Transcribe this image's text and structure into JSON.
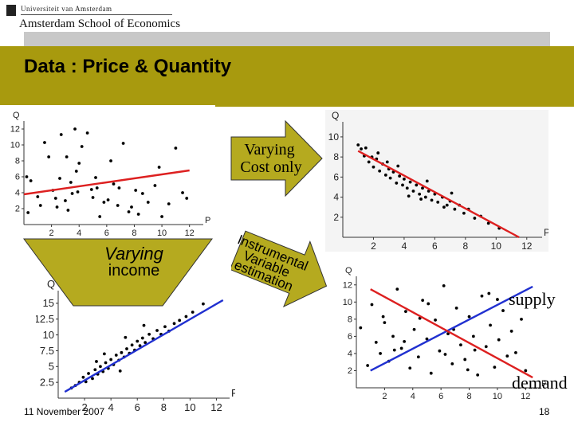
{
  "logo": {
    "small_text": "Universiteit van Amsterdam",
    "big_text": "Amsterdam School of Economics"
  },
  "slide": {
    "title": "Data : Price & Quantity",
    "date": "11 November 2007",
    "page": "18"
  },
  "arrows": {
    "varying_cost": [
      "Varying",
      "Cost only"
    ],
    "varying_income": [
      "Varying",
      "income"
    ],
    "iv": [
      "Instrumental",
      "Variable",
      "estimation"
    ]
  },
  "labels": {
    "supply": "supply",
    "demand": "demand"
  },
  "colors": {
    "band": "#a89a0e",
    "arrow": "#b5aa1f",
    "red": "#dd2020",
    "blue": "#2030d0"
  },
  "chart_data": [
    {
      "type": "scatter",
      "xlabel": "P",
      "ylabel": "Q",
      "xlim": [
        0,
        13
      ],
      "ylim": [
        0,
        13
      ],
      "xticks": [
        "2",
        "4",
        "6",
        "8",
        "10",
        "12"
      ],
      "yticks": [
        "2",
        "4",
        "6",
        "8",
        "10",
        "12"
      ],
      "fit_line": {
        "color": "#dd2020",
        "from": [
          0,
          3.8
        ],
        "to": [
          12,
          6.8
        ]
      },
      "points": [
        [
          0.2,
          6.0
        ],
        [
          0.3,
          1.5
        ],
        [
          0.5,
          5.5
        ],
        [
          1.0,
          3.5
        ],
        [
          1.5,
          10.3
        ],
        [
          1.8,
          8.5
        ],
        [
          2.1,
          4.3
        ],
        [
          2.3,
          3.3
        ],
        [
          2.6,
          5.8
        ],
        [
          2.7,
          11.3
        ],
        [
          3.0,
          3.0
        ],
        [
          3.1,
          8.5
        ],
        [
          3.2,
          1.8
        ],
        [
          3.5,
          3.9
        ],
        [
          3.7,
          12.0
        ],
        [
          3.8,
          6.7
        ],
        [
          4.2,
          9.8
        ],
        [
          4.6,
          11.5
        ],
        [
          5.0,
          3.4
        ],
        [
          5.2,
          5.9
        ],
        [
          5.5,
          1.0
        ],
        [
          5.8,
          2.8
        ],
        [
          6.3,
          8.0
        ],
        [
          6.5,
          5.1
        ],
        [
          6.9,
          4.6
        ],
        [
          7.2,
          10.2
        ],
        [
          7.6,
          1.6
        ],
        [
          8.1,
          4.3
        ],
        [
          8.6,
          3.9
        ],
        [
          9.0,
          2.8
        ],
        [
          9.5,
          4.9
        ],
        [
          10.0,
          1.0
        ],
        [
          10.5,
          2.6
        ],
        [
          11.0,
          9.6
        ],
        [
          11.5,
          4.0
        ],
        [
          11.8,
          3.3
        ],
        [
          4.9,
          4.4
        ],
        [
          5.3,
          4.6
        ],
        [
          2.4,
          2.2
        ],
        [
          6.1,
          3.1
        ],
        [
          8.3,
          1.3
        ],
        [
          3.4,
          5.3
        ],
        [
          1.2,
          2.4
        ],
        [
          9.8,
          7.2
        ],
        [
          7.8,
          2.2
        ],
        [
          4.0,
          7.7
        ],
        [
          6.8,
          2.4
        ],
        [
          3.9,
          4.1
        ]
      ]
    },
    {
      "type": "scatter",
      "xlabel": "P",
      "ylabel": "Q",
      "xlim": [
        0,
        13
      ],
      "ylim": [
        0,
        11.5
      ],
      "xticks": [
        "2",
        "4",
        "6",
        "8",
        "10",
        "12"
      ],
      "yticks": [
        "2",
        "4",
        "6",
        "8",
        "10"
      ],
      "fit_line": {
        "color": "#dd2020",
        "from": [
          1,
          8.6
        ],
        "to": [
          11.5,
          0
        ]
      },
      "points": [
        [
          1.0,
          9.2
        ],
        [
          1.2,
          8.8
        ],
        [
          1.4,
          8.1
        ],
        [
          1.5,
          8.9
        ],
        [
          1.7,
          7.5
        ],
        [
          1.9,
          8.0
        ],
        [
          2.0,
          7.0
        ],
        [
          2.2,
          7.8
        ],
        [
          2.4,
          6.6
        ],
        [
          2.6,
          7.3
        ],
        [
          2.8,
          6.2
        ],
        [
          3.0,
          6.8
        ],
        [
          3.1,
          5.9
        ],
        [
          3.3,
          6.5
        ],
        [
          3.5,
          5.4
        ],
        [
          3.7,
          6.1
        ],
        [
          3.9,
          5.2
        ],
        [
          4.0,
          5.8
        ],
        [
          4.2,
          4.9
        ],
        [
          4.4,
          5.5
        ],
        [
          4.6,
          4.6
        ],
        [
          4.8,
          5.2
        ],
        [
          5.0,
          4.3
        ],
        [
          5.2,
          4.9
        ],
        [
          5.4,
          4.0
        ],
        [
          5.6,
          4.6
        ],
        [
          5.8,
          3.7
        ],
        [
          6.0,
          4.3
        ],
        [
          6.2,
          3.5
        ],
        [
          6.5,
          4.0
        ],
        [
          6.8,
          3.2
        ],
        [
          7.0,
          3.6
        ],
        [
          7.3,
          2.8
        ],
        [
          7.6,
          3.2
        ],
        [
          7.9,
          2.4
        ],
        [
          8.2,
          2.8
        ],
        [
          8.6,
          1.9
        ],
        [
          9.0,
          2.1
        ],
        [
          9.5,
          1.4
        ],
        [
          10.2,
          0.9
        ],
        [
          2.3,
          8.4
        ],
        [
          3.6,
          7.1
        ],
        [
          5.5,
          5.6
        ],
        [
          6.6,
          3.0
        ],
        [
          4.3,
          4.1
        ],
        [
          2.9,
          7.5
        ],
        [
          5.1,
          3.8
        ],
        [
          7.1,
          4.4
        ]
      ]
    },
    {
      "type": "scatter",
      "xlabel": "P",
      "ylabel": "Q",
      "xlim": [
        0,
        13
      ],
      "ylim": [
        0,
        17
      ],
      "xticks": [
        "2",
        "4",
        "6",
        "8",
        "10",
        "12"
      ],
      "yticks": [
        "2.5",
        "5",
        "7.5",
        "10",
        "12.5",
        "15"
      ],
      "fit_line": {
        "color": "#2030d0",
        "from": [
          0.5,
          1.0
        ],
        "to": [
          12.5,
          15.5
        ]
      },
      "points": [
        [
          1.0,
          1.6
        ],
        [
          1.3,
          2.0
        ],
        [
          1.6,
          2.5
        ],
        [
          1.9,
          3.3
        ],
        [
          2.1,
          2.6
        ],
        [
          2.3,
          3.9
        ],
        [
          2.6,
          3.1
        ],
        [
          2.8,
          4.5
        ],
        [
          3.0,
          3.8
        ],
        [
          3.2,
          5.0
        ],
        [
          3.4,
          4.2
        ],
        [
          3.6,
          5.6
        ],
        [
          3.8,
          4.7
        ],
        [
          4.0,
          6.1
        ],
        [
          4.2,
          5.3
        ],
        [
          4.4,
          6.8
        ],
        [
          4.6,
          6.0
        ],
        [
          4.8,
          7.2
        ],
        [
          5.0,
          6.5
        ],
        [
          5.2,
          7.8
        ],
        [
          5.4,
          7.1
        ],
        [
          5.6,
          8.4
        ],
        [
          5.8,
          7.6
        ],
        [
          6.0,
          9.0
        ],
        [
          6.2,
          8.3
        ],
        [
          6.4,
          9.5
        ],
        [
          6.6,
          8.8
        ],
        [
          6.9,
          10.1
        ],
        [
          7.2,
          9.4
        ],
        [
          7.5,
          10.7
        ],
        [
          7.8,
          10.1
        ],
        [
          8.1,
          11.3
        ],
        [
          8.4,
          10.6
        ],
        [
          8.8,
          11.8
        ],
        [
          9.2,
          12.3
        ],
        [
          9.7,
          12.9
        ],
        [
          10.2,
          13.6
        ],
        [
          11.0,
          14.9
        ],
        [
          3.5,
          7.0
        ],
        [
          5.1,
          9.6
        ],
        [
          6.5,
          11.5
        ],
        [
          4.7,
          4.3
        ],
        [
          2.9,
          5.8
        ]
      ]
    },
    {
      "type": "scatter",
      "xlabel": "P",
      "ylabel": "Q",
      "xlim": [
        0,
        13
      ],
      "ylim": [
        0,
        13
      ],
      "xticks": [
        "2",
        "4",
        "6",
        "8",
        "10",
        "12"
      ],
      "yticks": [
        "2",
        "4",
        "6",
        "8",
        "10",
        "12"
      ],
      "lines": [
        {
          "name": "supply",
          "color": "#2030d0",
          "from": [
            1,
            2
          ],
          "to": [
            12.5,
            11.8
          ]
        },
        {
          "name": "demand",
          "color": "#dd2020",
          "from": [
            1,
            11.5
          ],
          "to": [
            12.5,
            1.2
          ]
        }
      ],
      "points": [
        [
          0.3,
          7.0
        ],
        [
          0.8,
          2.6
        ],
        [
          1.1,
          9.7
        ],
        [
          1.4,
          5.3
        ],
        [
          1.7,
          4.0
        ],
        [
          2.0,
          7.6
        ],
        [
          2.3,
          3.1
        ],
        [
          2.6,
          6.0
        ],
        [
          2.9,
          11.5
        ],
        [
          3.2,
          4.6
        ],
        [
          3.5,
          8.9
        ],
        [
          3.8,
          2.3
        ],
        [
          4.1,
          6.8
        ],
        [
          4.4,
          3.6
        ],
        [
          4.7,
          10.2
        ],
        [
          5.0,
          5.7
        ],
        [
          5.3,
          1.7
        ],
        [
          5.6,
          7.9
        ],
        [
          5.9,
          4.3
        ],
        [
          6.2,
          11.9
        ],
        [
          6.5,
          6.3
        ],
        [
          6.8,
          2.8
        ],
        [
          7.1,
          9.3
        ],
        [
          7.4,
          5.0
        ],
        [
          7.7,
          3.3
        ],
        [
          8.0,
          8.3
        ],
        [
          8.3,
          6.0
        ],
        [
          8.6,
          1.5
        ],
        [
          8.9,
          10.7
        ],
        [
          9.2,
          4.8
        ],
        [
          9.5,
          7.3
        ],
        [
          9.8,
          2.4
        ],
        [
          10.1,
          5.6
        ],
        [
          10.4,
          9.0
        ],
        [
          10.7,
          3.7
        ],
        [
          11.0,
          6.6
        ],
        [
          11.3,
          4.1
        ],
        [
          11.7,
          8.0
        ],
        [
          12.0,
          2.0
        ],
        [
          1.9,
          8.3
        ],
        [
          3.4,
          5.4
        ],
        [
          5.1,
          9.8
        ],
        [
          6.9,
          6.8
        ],
        [
          7.9,
          2.1
        ],
        [
          9.4,
          11.0
        ],
        [
          2.7,
          4.4
        ],
        [
          4.5,
          8.1
        ],
        [
          6.3,
          3.9
        ],
        [
          8.4,
          4.4
        ],
        [
          10.0,
          10.3
        ]
      ]
    }
  ]
}
